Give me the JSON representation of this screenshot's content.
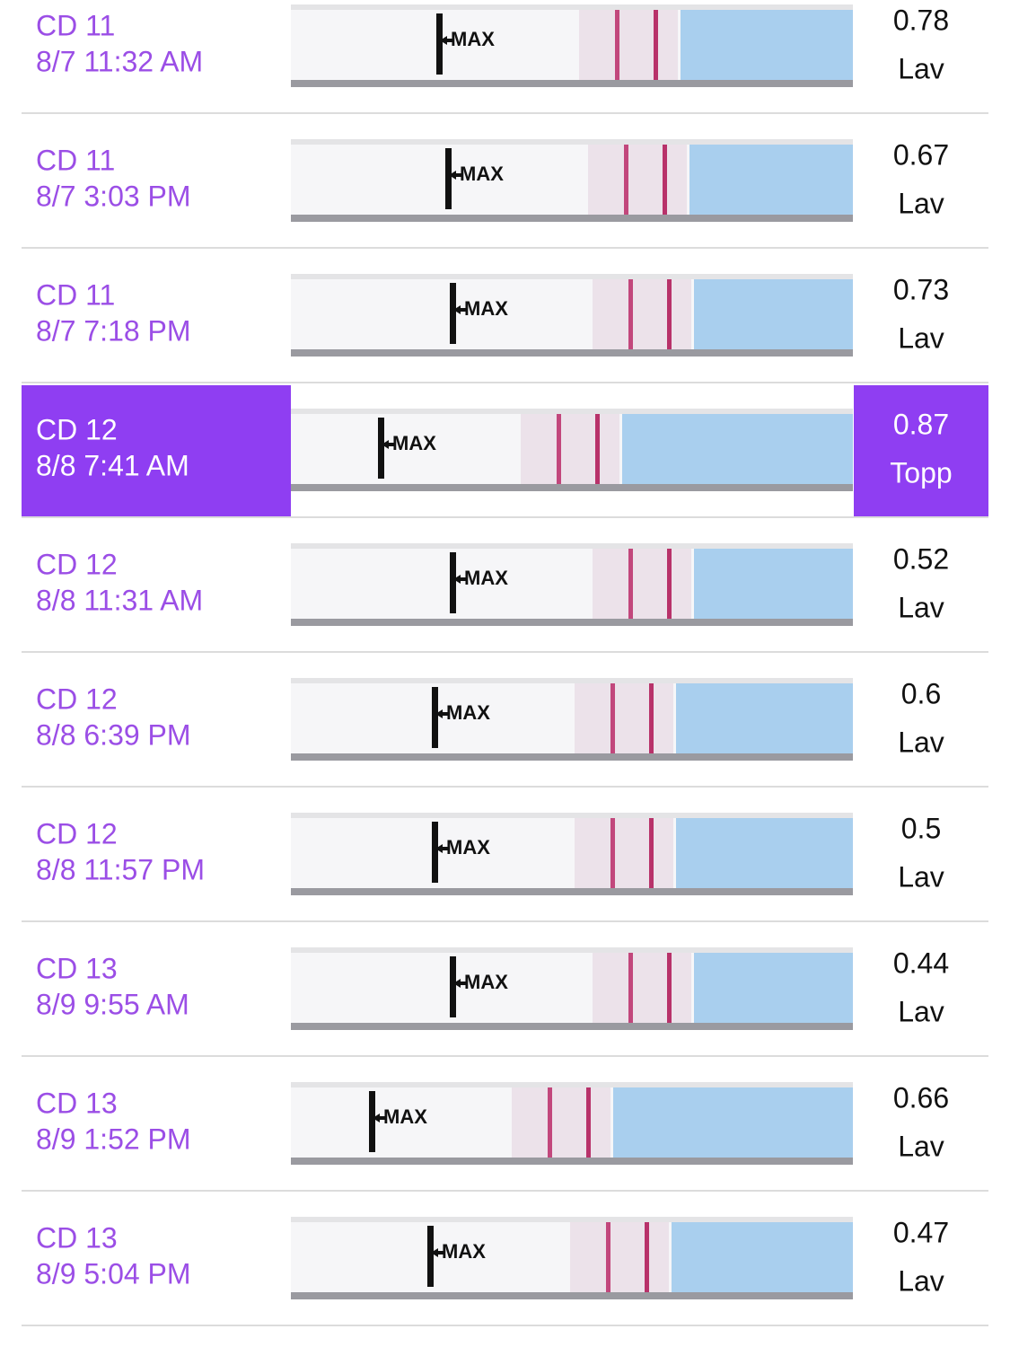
{
  "strip_marker": "MAX",
  "rows": [
    {
      "cycle_day": "CD 11",
      "time": "8/7 11:32 AM",
      "value": 0.78,
      "result": "Lav",
      "highlight": false
    },
    {
      "cycle_day": "CD 11",
      "time": "8/7 3:03 PM",
      "value": 0.67,
      "result": "Lav",
      "highlight": false
    },
    {
      "cycle_day": "CD 11",
      "time": "8/7 7:18 PM",
      "value": 0.73,
      "result": "Lav",
      "highlight": false
    },
    {
      "cycle_day": "CD 12",
      "time": "8/8 7:41 AM",
      "value": 0.87,
      "result": "Topp",
      "highlight": true
    },
    {
      "cycle_day": "CD 12",
      "time": "8/8 11:31 AM",
      "value": 0.52,
      "result": "Lav",
      "highlight": false
    },
    {
      "cycle_day": "CD 12",
      "time": "8/8 6:39 PM",
      "value": 0.6,
      "result": "Lav",
      "highlight": false
    },
    {
      "cycle_day": "CD 12",
      "time": "8/8 11:57 PM",
      "value": 0.5,
      "result": "Lav",
      "highlight": false
    },
    {
      "cycle_day": "CD 13",
      "time": "8/9 9:55 AM",
      "value": 0.44,
      "result": "Lav",
      "highlight": false
    },
    {
      "cycle_day": "CD 13",
      "time": "8/9 1:52 PM",
      "value": 0.66,
      "result": "Lav",
      "highlight": false
    },
    {
      "cycle_day": "CD 13",
      "time": "8/9 5:04 PM",
      "value": 0.47,
      "result": "Lav",
      "highlight": false
    }
  ]
}
